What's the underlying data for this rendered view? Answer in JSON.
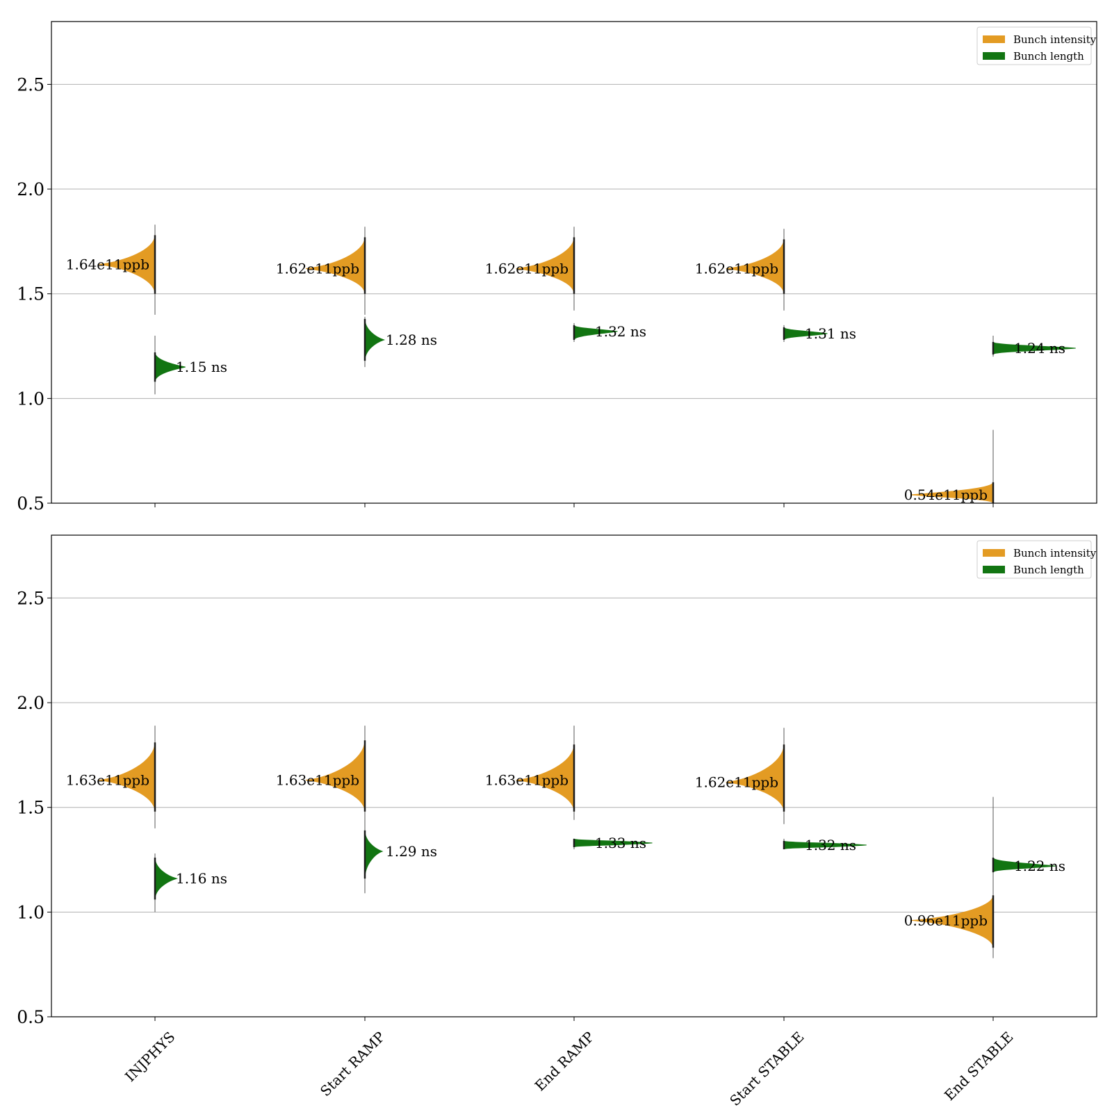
{
  "colors": {
    "intensity": "#e39b23",
    "length": "#127512",
    "grid": "#b0b0b0",
    "axis": "#000000"
  },
  "chart_data": [
    {
      "type": "violin",
      "categories": [
        "INJPHYS",
        "Start RAMP",
        "End RAMP",
        "Start STABLE",
        "End STABLE"
      ],
      "ylim": [
        0.5,
        2.8
      ],
      "yticks": [
        0.5,
        1.0,
        1.5,
        2.0,
        2.5
      ],
      "grid": true,
      "legend_position": "top-right",
      "legend": [
        "Bunch intensity",
        "Bunch length"
      ],
      "series": [
        {
          "name": "Bunch intensity",
          "side": "left",
          "values": [
            1.64,
            1.62,
            1.62,
            1.62,
            0.54
          ],
          "labels": [
            "1.64e11ppb",
            "1.62e11ppb",
            "1.62e11ppb",
            "1.62e11ppb",
            "0.54e11ppb"
          ],
          "range_low": [
            1.4,
            1.4,
            1.42,
            1.42,
            0.5
          ],
          "range_high": [
            1.83,
            1.82,
            1.82,
            1.81,
            0.85
          ],
          "core_low": [
            1.5,
            1.5,
            1.5,
            1.5,
            0.5
          ],
          "core_high": [
            1.78,
            1.77,
            1.77,
            1.76,
            0.6
          ]
        },
        {
          "name": "Bunch length",
          "side": "right",
          "values": [
            1.15,
            1.28,
            1.32,
            1.31,
            1.24
          ],
          "labels": [
            "1.15 ns",
            "1.28 ns",
            "1.32 ns",
            "1.31 ns",
            "1.24 ns"
          ],
          "range_low": [
            1.02,
            1.15,
            1.27,
            1.27,
            1.2
          ],
          "range_high": [
            1.3,
            1.39,
            1.36,
            1.35,
            1.3
          ],
          "core_low": [
            1.08,
            1.18,
            1.28,
            1.28,
            1.21
          ],
          "core_high": [
            1.22,
            1.38,
            1.35,
            1.34,
            1.27
          ]
        }
      ]
    },
    {
      "type": "violin",
      "categories": [
        "INJPHYS",
        "Start RAMP",
        "End RAMP",
        "Start STABLE",
        "End STABLE"
      ],
      "ylim": [
        0.5,
        2.8
      ],
      "yticks": [
        0.5,
        1.0,
        1.5,
        2.0,
        2.5
      ],
      "grid": true,
      "legend_position": "top-right",
      "legend": [
        "Bunch intensity",
        "Bunch length"
      ],
      "series": [
        {
          "name": "Bunch intensity",
          "side": "left",
          "values": [
            1.63,
            1.63,
            1.63,
            1.62,
            0.96
          ],
          "labels": [
            "1.63e11ppb",
            "1.63e11ppb",
            "1.63e11ppb",
            "1.62e11ppb",
            "0.96e11ppb"
          ],
          "range_low": [
            1.4,
            1.38,
            1.44,
            1.42,
            0.78
          ],
          "range_high": [
            1.89,
            1.89,
            1.89,
            1.88,
            1.55
          ],
          "core_low": [
            1.48,
            1.48,
            1.48,
            1.48,
            0.83
          ],
          "core_high": [
            1.81,
            1.82,
            1.8,
            1.8,
            1.08
          ]
        },
        {
          "name": "Bunch length",
          "side": "right",
          "values": [
            1.16,
            1.29,
            1.33,
            1.32,
            1.22
          ],
          "labels": [
            "1.16 ns",
            "1.29 ns",
            "1.33 ns",
            "1.32 ns",
            "1.22 ns"
          ],
          "range_low": [
            1.0,
            1.09,
            1.3,
            1.3,
            1.19
          ],
          "range_high": [
            1.28,
            1.4,
            1.35,
            1.35,
            1.26
          ],
          "core_low": [
            1.06,
            1.16,
            1.31,
            1.3,
            1.19
          ],
          "core_high": [
            1.26,
            1.39,
            1.35,
            1.34,
            1.26
          ]
        }
      ]
    }
  ]
}
